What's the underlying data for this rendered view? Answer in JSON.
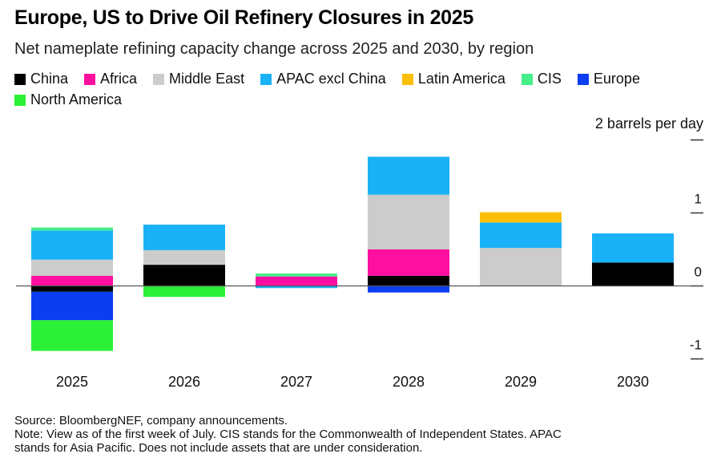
{
  "title": "Europe, US to Drive Oil Refinery Closures in 2025",
  "subtitle": "Net nameplate refining capacity change across 2025 and 2030, by region",
  "colors": {
    "China": "#000000",
    "Africa": "#ff0fa0",
    "Middle East": "#cccccc",
    "APAC excl China": "#1ab2f7",
    "Latin America": "#fbbf08",
    "CIS": "#45ef8a",
    "Europe": "#0b3ef0",
    "North America": "#2bf035"
  },
  "source": {
    "line1": "Source: BloombergNEF, company announcements.",
    "line2": "Note: View as of the first week of July. CIS stands for the Commonwealth of Independent States. APAC",
    "line3": "stands for Asia Pacific. Does not include assets that are under consideration."
  },
  "chart_data": {
    "type": "bar",
    "stacked": true,
    "unit_label": "2 barrels per day",
    "categories": [
      "2025",
      "2026",
      "2027",
      "2028",
      "2029",
      "2030"
    ],
    "ylim": [
      -1.05,
      1.98
    ],
    "yticks": [
      2,
      1,
      0,
      -1
    ],
    "ytick_labels": [
      "",
      "1",
      "0",
      "-1"
    ],
    "legend_position": "top",
    "series": [
      {
        "name": "China",
        "values": [
          -0.08,
          0.29,
          0,
          0.14,
          0,
          0.32
        ]
      },
      {
        "name": "Africa",
        "values": [
          0.14,
          0,
          0.13,
          0.36,
          0,
          0
        ]
      },
      {
        "name": "Middle East",
        "values": [
          0.22,
          0.2,
          0,
          0.75,
          0.52,
          0
        ]
      },
      {
        "name": "APAC excl China",
        "values": [
          0.4,
          0.35,
          -0.03,
          0.52,
          0.35,
          0.4
        ]
      },
      {
        "name": "Latin America",
        "values": [
          0,
          0,
          0,
          0,
          0.14,
          0
        ]
      },
      {
        "name": "CIS",
        "values": [
          0.04,
          0,
          0.04,
          0,
          0,
          0
        ]
      },
      {
        "name": "Europe",
        "values": [
          -0.39,
          0,
          0,
          -0.09,
          0,
          0
        ]
      },
      {
        "name": "North America",
        "values": [
          -0.42,
          -0.15,
          0,
          0,
          0,
          0
        ]
      }
    ]
  }
}
